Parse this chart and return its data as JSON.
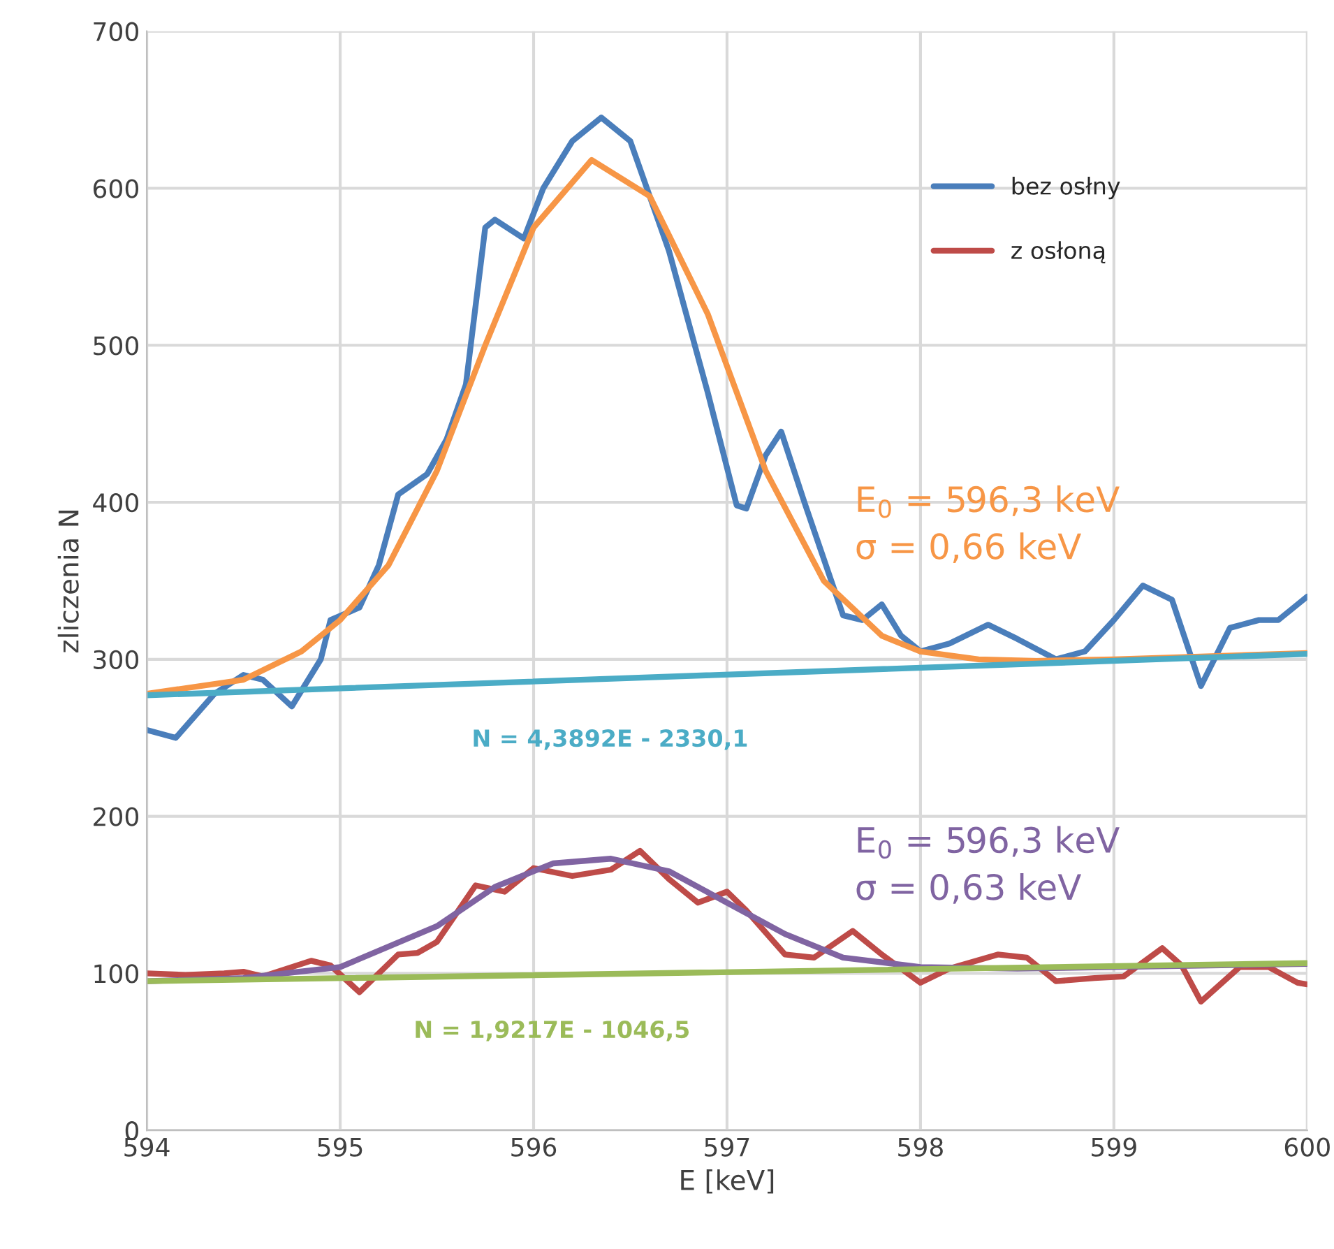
{
  "chart_data": {
    "type": "line",
    "xlabel": "E [keV]",
    "ylabel": "zliczenia N",
    "xlim": [
      594,
      600
    ],
    "xticks": [
      594,
      595,
      596,
      597,
      598,
      599,
      600
    ],
    "ylim": [
      0,
      700
    ],
    "yticks": [
      0,
      100,
      200,
      300,
      400,
      500,
      600,
      700
    ],
    "grid": true,
    "legend": "top right",
    "marker": "none",
    "line_style": "solid",
    "series": [
      {
        "name": "bez osłny",
        "color": "#4a7ebb",
        "x": [
          594.0,
          594.15,
          594.35,
          594.5,
          594.6,
          594.75,
          594.9,
          594.95,
          595.1,
          595.2,
          595.3,
          595.45,
          595.55,
          595.65,
          595.75,
          595.8,
          595.95,
          596.05,
          596.2,
          596.35,
          596.5,
          596.7,
          596.9,
          597.05,
          597.1,
          597.2,
          597.28,
          597.4,
          597.6,
          597.7,
          597.8,
          597.9,
          598.0,
          598.15,
          598.35,
          598.5,
          598.7,
          598.85,
          599.0,
          599.15,
          599.3,
          599.45,
          599.6,
          599.75,
          599.85,
          600.0
        ],
        "values": [
          255,
          250,
          278,
          290,
          287,
          270,
          300,
          325,
          333,
          360,
          405,
          418,
          440,
          475,
          575,
          580,
          568,
          600,
          630,
          645,
          630,
          560,
          470,
          398,
          396,
          430,
          445,
          400,
          328,
          325,
          335,
          315,
          305,
          310,
          322,
          313,
          300,
          305,
          325,
          347,
          338,
          283,
          320,
          325,
          325,
          340
        ]
      },
      {
        "name": "z osłoną",
        "color": "#be4b48",
        "x": [
          594.0,
          594.2,
          594.4,
          594.5,
          594.6,
          594.85,
          594.95,
          595.1,
          595.3,
          595.4,
          595.5,
          595.7,
          595.85,
          596.0,
          596.2,
          596.4,
          596.55,
          596.7,
          596.85,
          597.0,
          597.1,
          597.3,
          597.45,
          597.65,
          597.8,
          598.0,
          598.15,
          598.4,
          598.55,
          598.7,
          598.9,
          599.05,
          599.25,
          599.35,
          599.45,
          599.65,
          599.8,
          599.95,
          600.0
        ],
        "values": [
          100,
          99,
          100,
          101,
          98,
          108,
          105,
          88,
          112,
          113,
          120,
          156,
          152,
          167,
          162,
          166,
          178,
          160,
          145,
          152,
          140,
          112,
          110,
          127,
          112,
          94,
          103,
          112,
          110,
          95,
          97,
          98,
          116,
          105,
          82,
          104,
          104,
          94,
          93
        ]
      },
      {
        "color": "#f79646",
        "x": [
          594.0,
          594.5,
          594.8,
          595.0,
          595.25,
          595.5,
          595.75,
          596.0,
          596.3,
          596.6,
          596.9,
          597.2,
          597.5,
          597.8,
          598.0,
          598.3,
          598.6,
          599.0,
          600.0
        ],
        "values": [
          278,
          287,
          305,
          325,
          360,
          420,
          500,
          575,
          618,
          595,
          520,
          420,
          350,
          315,
          305,
          300,
          299,
          300,
          304
        ]
      },
      {
        "color": "#4bacc6",
        "x": [
          594.0,
          600.0
        ],
        "values": [
          277.1,
          303.4
        ]
      },
      {
        "color": "#8064a2",
        "x": [
          594.0,
          594.5,
          595.0,
          595.5,
          595.8,
          596.1,
          596.4,
          596.7,
          597.0,
          597.3,
          597.6,
          598.0,
          598.5,
          599.0,
          600.0
        ],
        "values": [
          95,
          97,
          104,
          130,
          155,
          170,
          173,
          165,
          145,
          125,
          110,
          104,
          103,
          104,
          106
        ]
      },
      {
        "color": "#9bbb59",
        "x": [
          594.0,
          600.0
        ],
        "values": [
          95.0,
          106.5
        ]
      }
    ],
    "annotations": [
      "E$_{0}$ = 596,3 keV\nσ = 0,66 keV",
      "N = 4,3892E - 2330,1",
      "E$_{0}$ = 596,3 keV\nσ = 0,63 keV",
      "N = 1,9217E - 1046,5"
    ]
  }
}
